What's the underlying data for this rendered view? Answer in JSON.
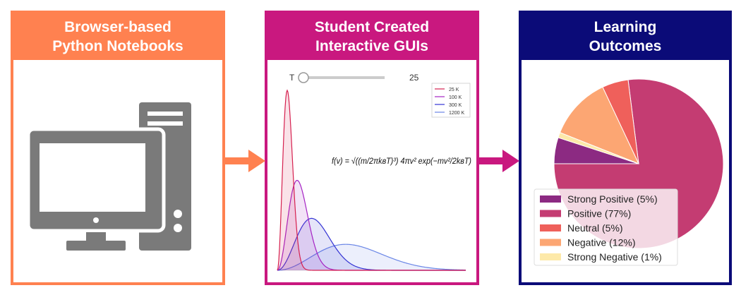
{
  "panels": [
    {
      "title_lines": [
        "Browser-based",
        "Python Notebooks"
      ]
    },
    {
      "title_lines": [
        "Student Created",
        "Interactive GUIs"
      ]
    },
    {
      "title_lines": [
        "Learning",
        "Outcomes"
      ]
    }
  ],
  "chart_data": [
    {
      "type": "distribution",
      "slider_label": "T",
      "slider_value": 25,
      "formula": "f(v) = √((m/2πkʙT)³) 4πv² exp(−mv²/2kʙT)",
      "series": [
        {
          "name": "25 K",
          "color": "#d6204f",
          "value": 25
        },
        {
          "name": "100 K",
          "color": "#a524c4",
          "value": 100
        },
        {
          "name": "300 K",
          "color": "#3434d4",
          "value": 300
        },
        {
          "name": "1200 K",
          "color": "#6a86e6",
          "value": 1200
        }
      ]
    },
    {
      "type": "pie",
      "categories": [
        "Strong Positive (5%)",
        "Positive (77%)",
        "Neutral (5%)",
        "Negative (12%)",
        "Strong Negative (1%)"
      ],
      "values": [
        5,
        77,
        5,
        12,
        1
      ],
      "colors": [
        "#8c2a82",
        "#c43c72",
        "#ef605b",
        "#fca673",
        "#fde9a9"
      ]
    }
  ]
}
